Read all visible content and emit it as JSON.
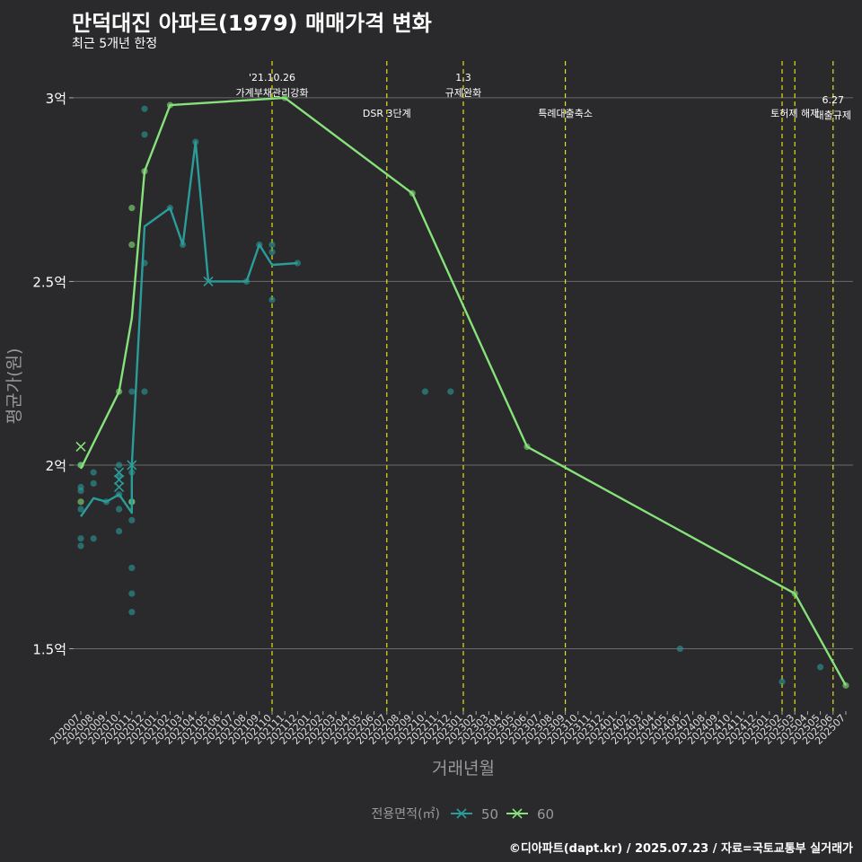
{
  "header": {
    "title": "만덕대진 아파트(1979) 매매가격 변화",
    "subtitle": "최근 5개년 한정"
  },
  "footer": "©디아파트(dapt.kr) / 2025.07.23 / 자료=국토교통부 실거래가",
  "chart_data": {
    "type": "line",
    "title": "만덕대진 아파트(1979) 매매가격 변화",
    "xlabel": "거래년월",
    "ylabel": "평균가(원)",
    "ylim": [
      1.33,
      3.1
    ],
    "y_ticks": [
      {
        "v": 1.5,
        "label": "1.5억"
      },
      {
        "v": 2,
        "label": "2억"
      },
      {
        "v": 2.5,
        "label": "2.5억"
      },
      {
        "v": 3,
        "label": "3억"
      }
    ],
    "months": [
      "202007",
      "202008",
      "202009",
      "202010",
      "202011",
      "202012",
      "202101",
      "202102",
      "202103",
      "202104",
      "202105",
      "202106",
      "202107",
      "202108",
      "202109",
      "202110",
      "202111",
      "202112",
      "202201",
      "202202",
      "202203",
      "202204",
      "202205",
      "202206",
      "202207",
      "202208",
      "202209",
      "202210",
      "202211",
      "202212",
      "202301",
      "202302",
      "202303",
      "202304",
      "202305",
      "202306",
      "202307",
      "202308",
      "202309",
      "202310",
      "202311",
      "202312",
      "202401",
      "202402",
      "202403",
      "202404",
      "202405",
      "202406",
      "202407",
      "202408",
      "202409",
      "202410",
      "202411",
      "202412",
      "202501",
      "202502",
      "202503",
      "202504",
      "202505",
      "202506",
      "202507"
    ],
    "legend": {
      "title": "전용면적(㎡)",
      "items": [
        "50",
        "60"
      ]
    },
    "colors": {
      "s50": "#2a9d9a",
      "s60": "#86e27a",
      "vline": "#e2e21a",
      "grid": "#6a6a6a",
      "text": "#ffffff",
      "axis": "#aaaaaa"
    },
    "series": [
      {
        "name": "50",
        "points": [
          [
            "202007",
            1.86
          ],
          [
            "202008",
            1.91
          ],
          [
            "202009",
            1.9
          ],
          [
            "202010",
            1.92
          ],
          [
            "202011",
            1.87
          ],
          [
            "202011",
            2.0
          ],
          [
            "202012",
            2.65
          ],
          [
            "202102",
            2.7
          ],
          [
            "202103",
            2.6
          ],
          [
            "202104",
            2.88
          ],
          [
            "202105",
            2.5
          ],
          [
            "202108",
            2.5
          ],
          [
            "202109",
            2.6
          ],
          [
            "202110",
            2.545
          ],
          [
            "202112",
            2.55
          ]
        ]
      },
      {
        "name": "60",
        "points": [
          [
            "202007",
            1.99
          ],
          [
            "202010",
            2.2
          ],
          [
            "202011",
            2.4
          ],
          [
            "202012",
            2.8
          ],
          [
            "202102",
            2.98
          ],
          [
            "202111",
            3.0
          ],
          [
            "202209",
            2.74
          ],
          [
            "202306",
            2.05
          ],
          [
            "202503",
            1.65
          ],
          [
            "202507",
            1.4
          ]
        ]
      }
    ],
    "scatter": [
      {
        "x": "202007",
        "y": 1.78,
        "s": "50"
      },
      {
        "x": "202007",
        "y": 1.8,
        "s": "50"
      },
      {
        "x": "202007",
        "y": 1.88,
        "s": "50"
      },
      {
        "x": "202007",
        "y": 1.93,
        "s": "50"
      },
      {
        "x": "202007",
        "y": 1.94,
        "s": "50"
      },
      {
        "x": "202007",
        "y": 2.0,
        "s": "50"
      },
      {
        "x": "202008",
        "y": 1.8,
        "s": "50"
      },
      {
        "x": "202008",
        "y": 1.95,
        "s": "50"
      },
      {
        "x": "202008",
        "y": 1.98,
        "s": "50"
      },
      {
        "x": "202009",
        "y": 1.9,
        "s": "50"
      },
      {
        "x": "202010",
        "y": 1.82,
        "s": "50"
      },
      {
        "x": "202010",
        "y": 1.88,
        "s": "50"
      },
      {
        "x": "202010",
        "y": 1.92,
        "s": "50"
      },
      {
        "x": "202010",
        "y": 1.97,
        "s": "50"
      },
      {
        "x": "202010",
        "y": 2.0,
        "s": "50"
      },
      {
        "x": "202011",
        "y": 1.6,
        "s": "50"
      },
      {
        "x": "202011",
        "y": 1.65,
        "s": "50"
      },
      {
        "x": "202011",
        "y": 1.72,
        "s": "50"
      },
      {
        "x": "202011",
        "y": 1.85,
        "s": "50"
      },
      {
        "x": "202011",
        "y": 1.9,
        "s": "50"
      },
      {
        "x": "202011",
        "y": 1.98,
        "s": "50"
      },
      {
        "x": "202011",
        "y": 2.2,
        "s": "50"
      },
      {
        "x": "202012",
        "y": 2.2,
        "s": "50"
      },
      {
        "x": "202012",
        "y": 2.55,
        "s": "50"
      },
      {
        "x": "202012",
        "y": 2.9,
        "s": "50"
      },
      {
        "x": "202012",
        "y": 2.97,
        "s": "50"
      },
      {
        "x": "202102",
        "y": 2.7,
        "s": "50"
      },
      {
        "x": "202103",
        "y": 2.6,
        "s": "50"
      },
      {
        "x": "202104",
        "y": 2.88,
        "s": "50"
      },
      {
        "x": "202108",
        "y": 2.5,
        "s": "50"
      },
      {
        "x": "202109",
        "y": 2.6,
        "s": "50"
      },
      {
        "x": "202110",
        "y": 2.45,
        "s": "50"
      },
      {
        "x": "202110",
        "y": 2.58,
        "s": "50"
      },
      {
        "x": "202110",
        "y": 2.6,
        "s": "50"
      },
      {
        "x": "202112",
        "y": 2.55,
        "s": "50"
      },
      {
        "x": "202210",
        "y": 2.2,
        "s": "50"
      },
      {
        "x": "202212",
        "y": 2.2,
        "s": "50"
      },
      {
        "x": "202406",
        "y": 1.5,
        "s": "50"
      },
      {
        "x": "202502",
        "y": 1.41,
        "s": "50"
      },
      {
        "x": "202505",
        "y": 1.45,
        "s": "50"
      },
      {
        "x": "202007",
        "y": 1.9,
        "s": "60"
      },
      {
        "x": "202007",
        "y": 2.0,
        "s": "60"
      },
      {
        "x": "202010",
        "y": 2.2,
        "s": "60"
      },
      {
        "x": "202011",
        "y": 1.9,
        "s": "60"
      },
      {
        "x": "202011",
        "y": 2.6,
        "s": "60"
      },
      {
        "x": "202011",
        "y": 2.7,
        "s": "60"
      },
      {
        "x": "202012",
        "y": 2.8,
        "s": "60"
      },
      {
        "x": "202102",
        "y": 2.98,
        "s": "60"
      },
      {
        "x": "202111",
        "y": 3.0,
        "s": "60"
      },
      {
        "x": "202209",
        "y": 2.74,
        "s": "60"
      },
      {
        "x": "202306",
        "y": 2.05,
        "s": "60"
      },
      {
        "x": "202503",
        "y": 1.65,
        "s": "60"
      },
      {
        "x": "202507",
        "y": 1.4,
        "s": "60"
      }
    ],
    "crosses": [
      {
        "x": "202007",
        "y": 2.05,
        "s": "60"
      },
      {
        "x": "202010",
        "y": 1.94,
        "s": "50"
      },
      {
        "x": "202010",
        "y": 1.96,
        "s": "50"
      },
      {
        "x": "202010",
        "y": 1.98,
        "s": "50"
      },
      {
        "x": "202011",
        "y": 2.0,
        "s": "50"
      },
      {
        "x": "202105",
        "y": 2.5,
        "s": "50"
      }
    ],
    "events": [
      {
        "x": "202110",
        "lines": [
          "'21.10.26",
          "가계부채관리강화"
        ],
        "row": 0
      },
      {
        "x": "202207",
        "lines": [
          "DSR 3단계"
        ],
        "row": 2
      },
      {
        "x": "202301",
        "lines": [
          "1.3",
          "규제완화"
        ],
        "row": 0
      },
      {
        "x": "202309",
        "lines": [
          "특례대출축소"
        ],
        "row": 2
      },
      {
        "x": "202502",
        "lines": [],
        "row": 1
      },
      {
        "x": "202503",
        "lines": [
          "토허제 해제"
        ],
        "row": 1
      },
      {
        "x": "202506",
        "lines": [
          "6.27",
          "대출규제"
        ],
        "row": 3
      }
    ]
  }
}
